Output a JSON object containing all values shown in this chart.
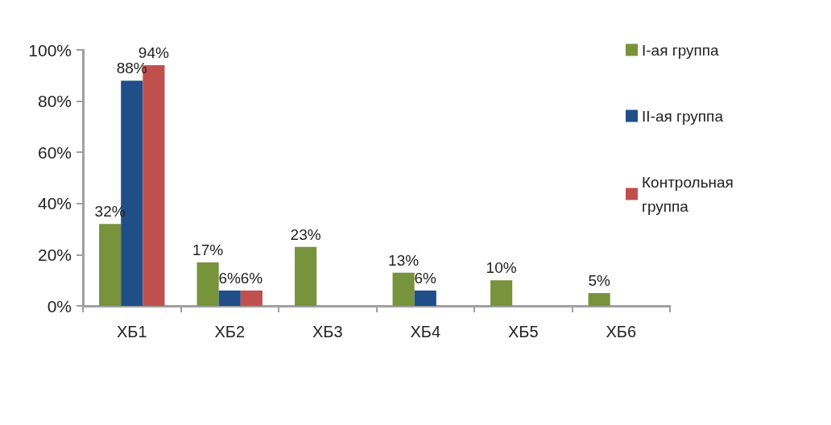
{
  "chart_data": {
    "type": "bar",
    "categories": [
      "ХБ1",
      "ХБ2",
      "ХБ3",
      "ХБ4",
      "ХБ5",
      "ХБ6"
    ],
    "ylim": [
      0,
      100
    ],
    "yticks": [
      {
        "value": 0,
        "label": "0%"
      },
      {
        "value": 20,
        "label": "20%"
      },
      {
        "value": 40,
        "label": "40%"
      },
      {
        "value": 60,
        "label": "60%"
      },
      {
        "value": 80,
        "label": "80%"
      },
      {
        "value": 100,
        "label": "100%"
      }
    ],
    "legend": "top right",
    "series": [
      {
        "name": "I-ая группа",
        "color": "#77933c",
        "values": [
          32,
          17,
          23,
          13,
          10,
          5
        ],
        "value_labels": [
          "32%",
          "17%",
          "23%",
          "13%",
          "10%",
          "5%"
        ]
      },
      {
        "name": "II-ая группа",
        "color": "#1f4e89",
        "values": [
          88,
          6,
          0,
          6,
          0,
          0
        ],
        "value_labels": [
          "88%",
          "6%",
          null,
          "6%",
          null,
          null
        ]
      },
      {
        "name": "Контрольная группа",
        "color": "#c0504d",
        "values": [
          94,
          6,
          null,
          null,
          0,
          0
        ],
        "value_labels": [
          "94%",
          "6%",
          null,
          null,
          null,
          null
        ]
      }
    ]
  }
}
